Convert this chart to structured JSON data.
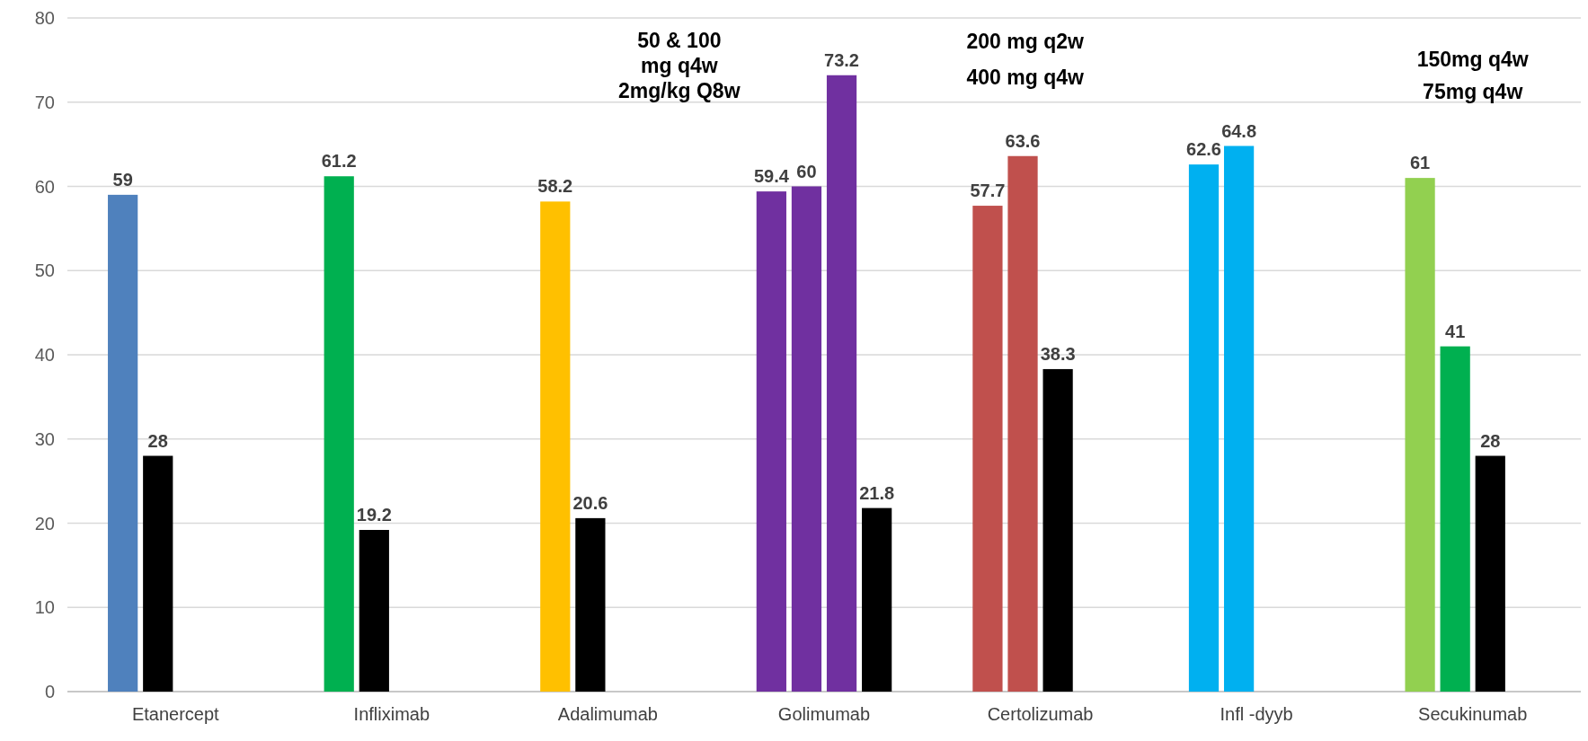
{
  "chart_data": {
    "type": "bar",
    "categories": [
      "Etanercept",
      "Infliximab",
      "Adalimumab",
      "Golimumab",
      "Certolizumab",
      "Infl -dyyb",
      "Secukinumab"
    ],
    "series": [
      {
        "values": [
          59,
          61.2,
          58.2,
          59.4,
          57.7,
          62.6,
          61
        ],
        "colors": [
          "#4f81bd",
          "#00b050",
          "#ffc000",
          "#7030a0",
          "#c0504d",
          "#00b0f0",
          "#92d050"
        ]
      },
      {
        "values": [
          28,
          19.2,
          20.6,
          60,
          63.6,
          64.8,
          41
        ],
        "colors": [
          "#000000",
          "#000000",
          "#000000",
          "#7030a0",
          "#c0504d",
          "#00b0f0",
          "#00b050"
        ]
      },
      {
        "values": [
          null,
          null,
          null,
          73.2,
          38.3,
          null,
          28
        ],
        "colors": [
          null,
          null,
          null,
          "#7030a0",
          "#000000",
          null,
          "#000000"
        ]
      },
      {
        "values": [
          null,
          null,
          null,
          21.8,
          null,
          null,
          null
        ],
        "colors": [
          null,
          null,
          null,
          "#000000",
          null,
          null,
          null
        ]
      }
    ],
    "ylim": [
      0,
      80
    ],
    "yticks": [
      0,
      10,
      20,
      30,
      40,
      50,
      60,
      70,
      80
    ],
    "grid": "y",
    "data_labels": true,
    "annotations": [
      "50 & 100\nmg q4w\n2mg/kg Q8w",
      "200 mg q2w\n400 mg q4w",
      "150mg q4w\n75mg q4w"
    ]
  }
}
